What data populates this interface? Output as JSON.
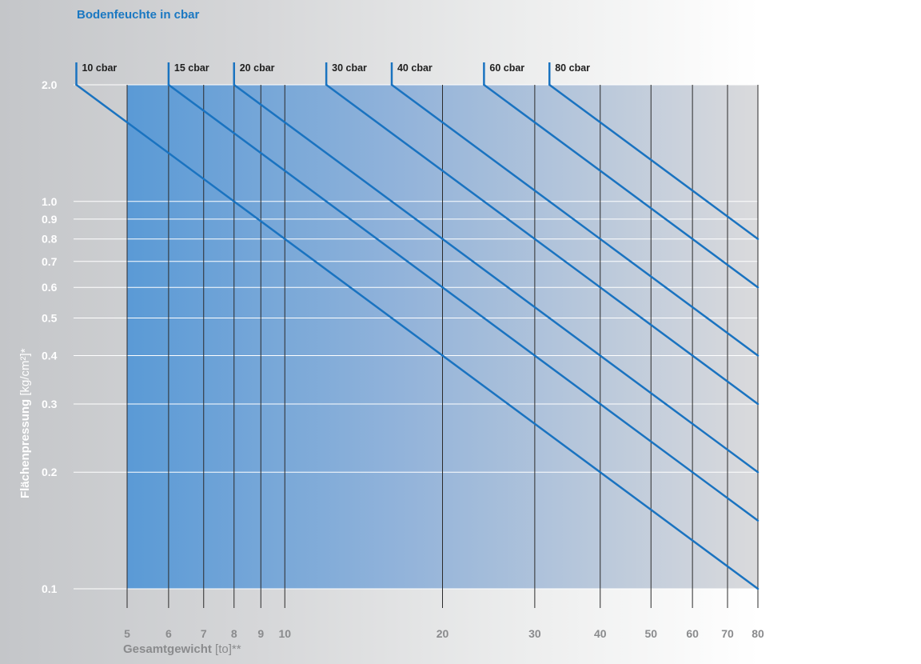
{
  "chart_data": {
    "type": "line",
    "title": "Bodenfeuchte in cbar",
    "xlabel": {
      "main": "Gesamtgewicht",
      "unit": "[to]**"
    },
    "ylabel": {
      "main": "Flächenpressung",
      "unit": "[kg/cm²]*"
    },
    "x_scale": "log",
    "y_scale": "log",
    "xlim": [
      5,
      80
    ],
    "ylim": [
      0.1,
      2.0
    ],
    "x_ticks": [
      5,
      6,
      7,
      8,
      9,
      10,
      20,
      30,
      40,
      50,
      60,
      70,
      80
    ],
    "y_ticks": [
      "2.0",
      "1.0",
      "0.9",
      "0.8",
      "0.7",
      "0.6",
      "0.5",
      "0.4",
      "0.3",
      "0.2",
      "0.1"
    ],
    "grid": true,
    "series": [
      {
        "name": "10 cbar",
        "x": [
          4,
          80
        ],
        "y": [
          2.0,
          0.1
        ]
      },
      {
        "name": "15 cbar",
        "x": [
          6,
          80
        ],
        "y": [
          2.0,
          0.15
        ]
      },
      {
        "name": "20 cbar",
        "x": [
          8,
          80
        ],
        "y": [
          2.0,
          0.2
        ]
      },
      {
        "name": "30 cbar",
        "x": [
          12,
          80
        ],
        "y": [
          2.0,
          0.3
        ]
      },
      {
        "name": "40 cbar",
        "x": [
          16,
          80
        ],
        "y": [
          2.0,
          0.4
        ]
      },
      {
        "name": "60 cbar",
        "x": [
          24,
          80
        ],
        "y": [
          2.0,
          0.6
        ]
      },
      {
        "name": "80 cbar",
        "x": [
          32,
          80
        ],
        "y": [
          2.0,
          0.8
        ]
      }
    ],
    "colors": {
      "line": "#1a73c0",
      "title": "#1a78c2",
      "tick": "#8a8b8d",
      "plot_left": "#5a9ad6",
      "plot_right": "#dadadc"
    }
  }
}
